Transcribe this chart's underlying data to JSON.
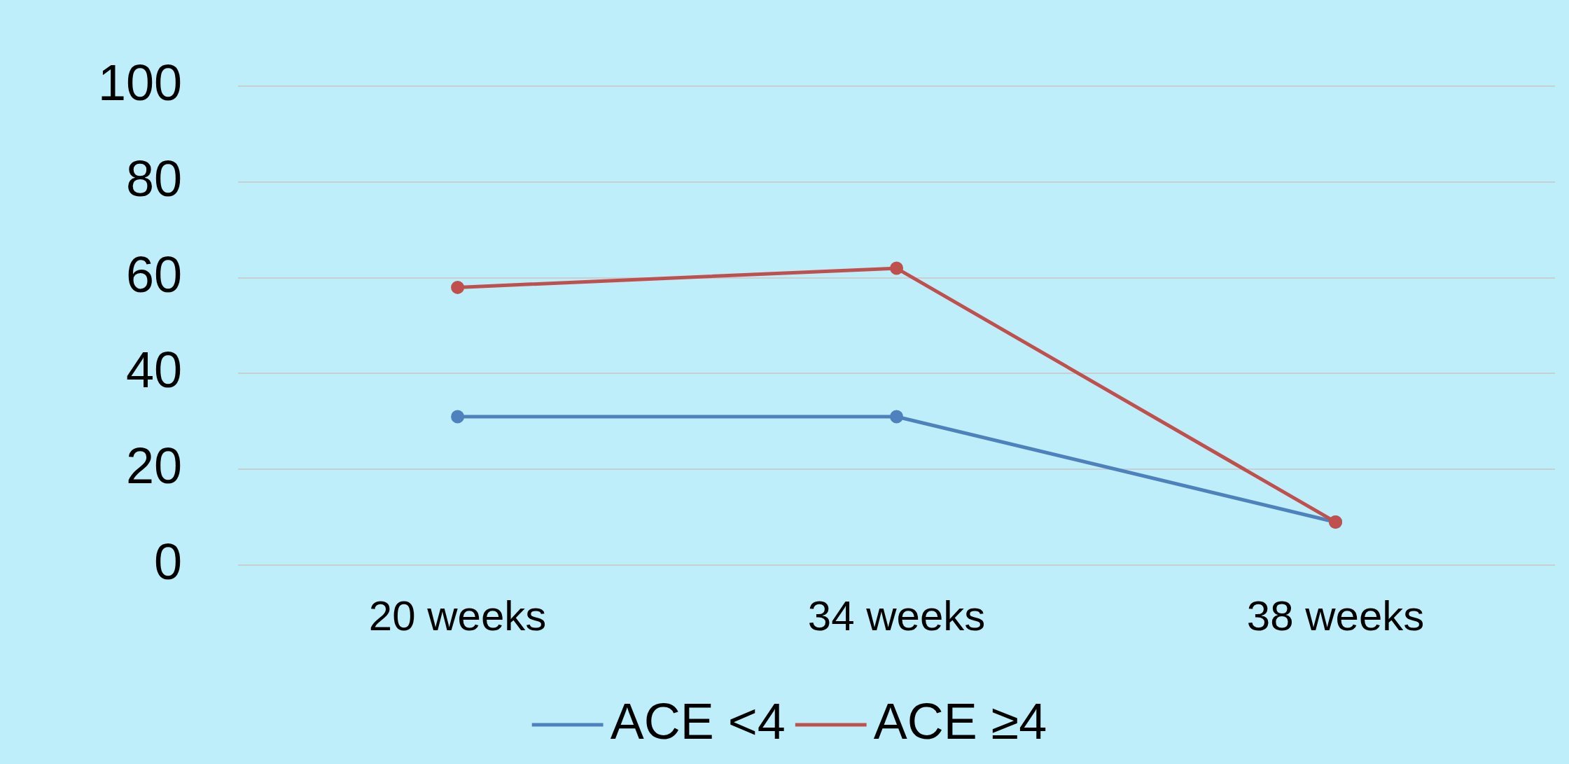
{
  "chart_data": {
    "type": "line",
    "categories": [
      "20 weeks",
      "34 weeks",
      "38 weeks"
    ],
    "series": [
      {
        "name": "ACE <4",
        "color": "#4f81bd",
        "values": [
          31,
          31,
          9
        ]
      },
      {
        "name": "ACE ≥4",
        "color": "#c0504d",
        "values": [
          58,
          62,
          9
        ]
      }
    ],
    "ylim": [
      0,
      100
    ],
    "yticks": [
      0,
      20,
      40,
      60,
      80,
      100
    ],
    "grid": "y",
    "legend": "bottom",
    "marker": "circle",
    "line_style": "solid"
  }
}
